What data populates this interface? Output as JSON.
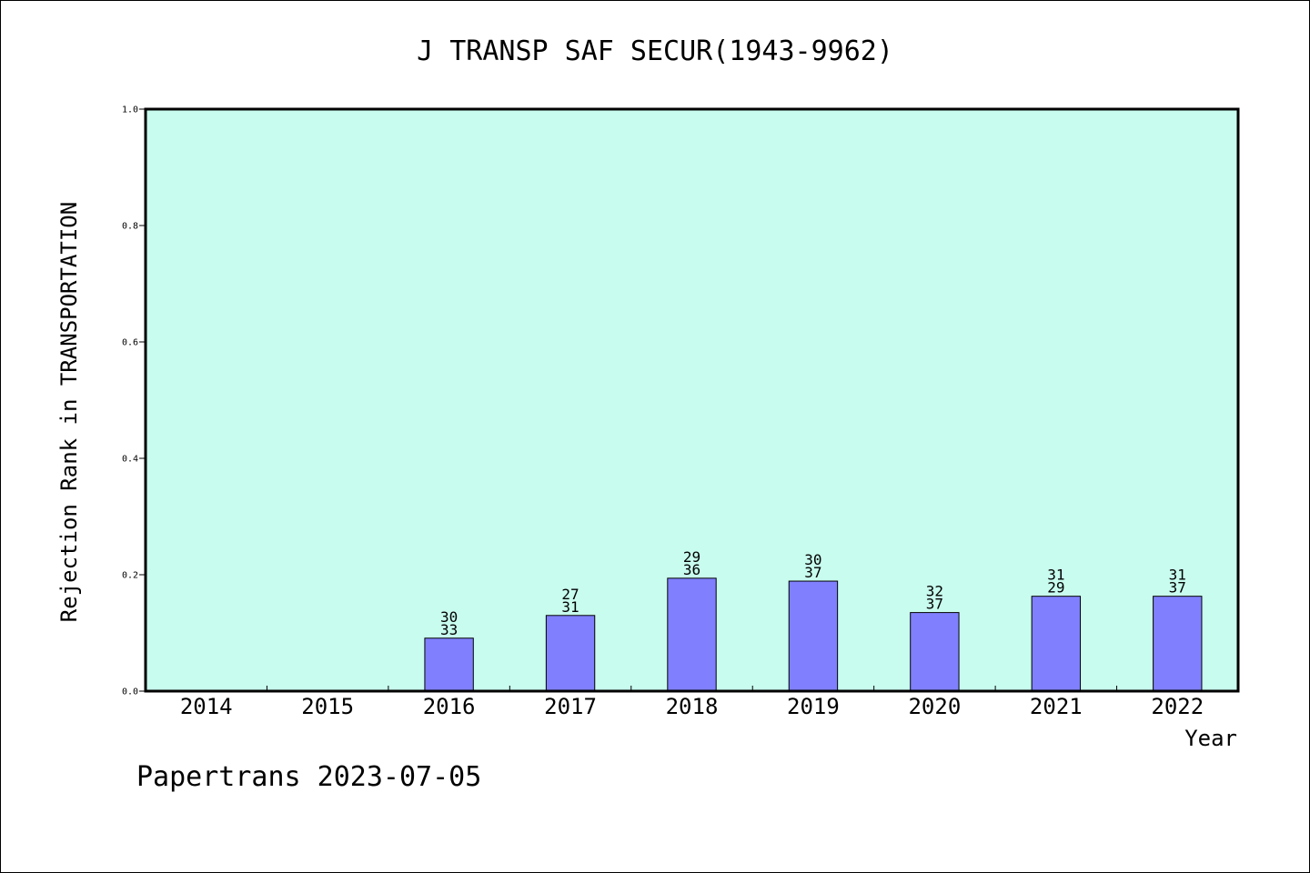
{
  "chart_data": {
    "type": "bar",
    "title": "J TRANSP SAF SECUR(1943-9962)",
    "xlabel": "Year",
    "ylabel": "Rejection Rank in TRANSPORTATION",
    "categories": [
      "2014",
      "2015",
      "2016",
      "2017",
      "2018",
      "2019",
      "2020",
      "2021",
      "2022"
    ],
    "values": [
      null,
      null,
      0.091,
      0.13,
      0.194,
      0.189,
      0.135,
      0.163,
      0.163
    ],
    "label_top": [
      null,
      null,
      "30",
      "27",
      "29",
      "30",
      "32",
      "31",
      "31"
    ],
    "label_bottom": [
      null,
      null,
      "33",
      "31",
      "36",
      "37",
      "37",
      "29",
      "37"
    ],
    "ylim": [
      0.0,
      1.0
    ],
    "yticks": [
      "0.0",
      "0.2",
      "0.4",
      "0.6",
      "0.8",
      "1.0"
    ],
    "grid": false,
    "colors": {
      "plot_background": "#c8fcee",
      "bar_fill": "#8080ff",
      "bar_stroke": "#000000"
    }
  },
  "footer": "Papertrans 2023-07-05"
}
